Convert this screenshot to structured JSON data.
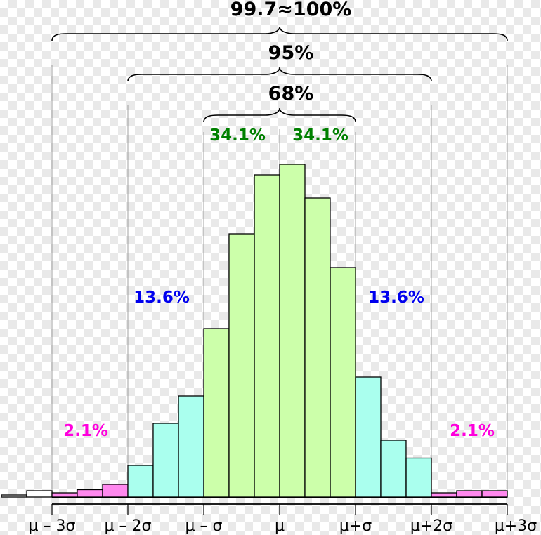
{
  "chart_data": {
    "type": "bar",
    "bin_width": 0.33333,
    "bins": [
      {
        "x0": -3.667,
        "value": 1,
        "color": "#ffffff"
      },
      {
        "x0": -3.333,
        "value": 3,
        "color": "#ffffff"
      },
      {
        "x0": -3.0,
        "value": 2,
        "color": "#ff88ee"
      },
      {
        "x0": -2.667,
        "value": 3.5,
        "color": "#ff88ee"
      },
      {
        "x0": -2.333,
        "value": 6,
        "color": "#ff88ee"
      },
      {
        "x0": -2.0,
        "value": 15,
        "color": "#aaffee"
      },
      {
        "x0": -1.667,
        "value": 35,
        "color": "#aaffee"
      },
      {
        "x0": -1.333,
        "value": 48,
        "color": "#aaffee"
      },
      {
        "x0": -1.0,
        "value": 80,
        "color": "#ccffaa"
      },
      {
        "x0": -0.667,
        "value": 125,
        "color": "#ccffaa"
      },
      {
        "x0": -0.333,
        "value": 153,
        "color": "#ccffaa"
      },
      {
        "x0": 0.0,
        "value": 158,
        "color": "#ccffaa"
      },
      {
        "x0": 0.333,
        "value": 142,
        "color": "#ccffaa"
      },
      {
        "x0": 0.667,
        "value": 109,
        "color": "#ccffaa"
      },
      {
        "x0": 1.0,
        "value": 57,
        "color": "#aaffee"
      },
      {
        "x0": 1.333,
        "value": 27,
        "color": "#aaffee"
      },
      {
        "x0": 1.667,
        "value": 18.5,
        "color": "#aaffee"
      },
      {
        "x0": 2.0,
        "value": 2,
        "color": "#ff88ee"
      },
      {
        "x0": 2.333,
        "value": 3,
        "color": "#ff88ee"
      },
      {
        "x0": 2.667,
        "value": 3,
        "color": "#ff88ee"
      }
    ],
    "x_ticks": [
      {
        "x": -3,
        "label": "μ – 3σ"
      },
      {
        "x": -2,
        "label": "μ – 2σ"
      },
      {
        "x": -1,
        "label": "μ – σ"
      },
      {
        "x": 0,
        "label": "μ"
      },
      {
        "x": 1,
        "label": "μ+σ"
      },
      {
        "x": 2,
        "label": "μ+2σ"
      },
      {
        "x": 3,
        "label": "μ+3σ"
      }
    ],
    "xlim": [
      -3.667,
      3.0
    ],
    "ylim": [
      0,
      170
    ],
    "grid": false,
    "guides": [
      -3,
      -2,
      -1,
      0,
      1,
      2,
      3
    ],
    "braces": [
      {
        "from": -3,
        "to": 3,
        "label": "99.7≈100%"
      },
      {
        "from": -2,
        "to": 2,
        "label": "95%"
      },
      {
        "from": -1,
        "to": 1,
        "label": "68%"
      }
    ],
    "region_labels": [
      {
        "text": "34.1%",
        "color": "#008000",
        "x": -0.5
      },
      {
        "text": "34.1%",
        "color": "#008000",
        "x": 0.5
      },
      {
        "text": "13.6%",
        "color": "#0000ee",
        "x": -1.5
      },
      {
        "text": "13.6%",
        "color": "#0000ee",
        "x": 1.5
      },
      {
        "text": "2.1%",
        "color": "#ff00dd",
        "x": -2.5
      },
      {
        "text": "2.1%",
        "color": "#ff00dd",
        "x": 2.5
      }
    ]
  }
}
